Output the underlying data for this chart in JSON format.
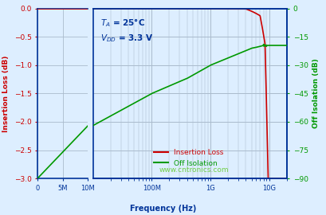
{
  "xlabel": "Frequency (Hz)",
  "ylabel_left": "Insertion Loss (dB)",
  "ylabel_right": "Off Isolation (dB)",
  "ylim_left": [
    -3.0,
    0
  ],
  "ylim_right": [
    -90,
    0
  ],
  "yticks_left": [
    0,
    -0.5,
    -1.0,
    -1.5,
    -2.0,
    -2.5,
    -3.0
  ],
  "yticks_right": [
    0,
    -15,
    -30,
    -45,
    -60,
    -75,
    -90
  ],
  "color_insertion": "#cc0000",
  "color_isolation": "#009900",
  "color_label_left": "#cc0000",
  "color_label_right": "#009900",
  "color_axes": "#003399",
  "color_grid": "#aabbcc",
  "color_bg": "#ddeeff",
  "color_watermark": "#66cc33",
  "watermark": "www.cntronics.com",
  "legend_insertion": "Insertion Loss",
  "legend_isolation": "Off Isolation"
}
